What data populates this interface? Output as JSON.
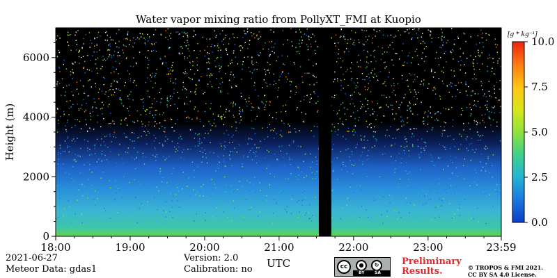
{
  "chart_data": {
    "type": "heatmap",
    "title": "Water vapor mixing ratio from PollyXT_FMI at Kuopio",
    "ylabel": "Height (m)",
    "xlabel": "UTC",
    "x_ticks": [
      "18:00",
      "19:00",
      "20:00",
      "21:00",
      "22:00",
      "23:00",
      "23:59"
    ],
    "y_ticks": [
      "0",
      "2000",
      "4000",
      "6000"
    ],
    "ylim": [
      0,
      7000
    ],
    "data_gap": [
      "21:32",
      "21:42"
    ],
    "colorbar": {
      "unit": "[g * kg⁻¹]",
      "ticks": [
        "0.0",
        "2.5",
        "5.0",
        "7.5",
        "10.0"
      ],
      "range": [
        0,
        10
      ],
      "colormap": [
        "#0a3dc8",
        "#1a78e0",
        "#22b5d8",
        "#3fd08a",
        "#8ee23a",
        "#d9e61a",
        "#ffc414",
        "#ff7a10",
        "#e8240e"
      ]
    },
    "layers": [
      {
        "height_range_m": [
          0,
          150
        ],
        "mixing_ratio_gkg": 5.0
      },
      {
        "height_range_m": [
          150,
          700
        ],
        "mixing_ratio_gkg": 3.5
      },
      {
        "height_range_m": [
          700,
          1500
        ],
        "mixing_ratio_gkg": 2.6
      },
      {
        "height_range_m": [
          1500,
          3000
        ],
        "mixing_ratio_gkg": 1.5
      },
      {
        "height_range_m": [
          3000,
          7000
        ],
        "mixing_ratio_gkg": "sparse noise"
      }
    ]
  },
  "footer": {
    "date": "2021-06-27",
    "meteor": "Meteor Data: gdas1",
    "version": "Version: 2.0",
    "calibration": "Calibration: no",
    "prelim_line1": "Preliminary",
    "prelim_line2": "Results.",
    "copyright_line1": "© TROPOS & FMI 2021.",
    "copyright_line2": "CC BY SA 4.0 License.",
    "cc_text": "cc",
    "by_text": "BY",
    "sa_text": "SA"
  }
}
